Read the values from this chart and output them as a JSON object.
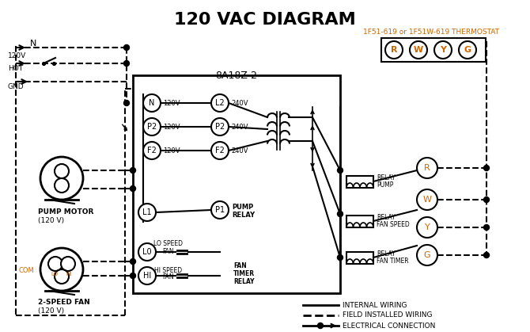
{
  "title": "120 VAC DIAGRAM",
  "title_fontsize": 16,
  "bg_color": "#ffffff",
  "line_color": "#000000",
  "orange_color": "#cc6600",
  "thermostat_label": "1F51-619 or 1F51W-619 THERMOSTAT",
  "board_label": "8A18Z-2",
  "therm_letters": [
    "R",
    "W",
    "Y",
    "G"
  ],
  "left_terminals": [
    [
      "N",
      "120V"
    ],
    [
      "P2",
      "120V"
    ],
    [
      "F2",
      "120V"
    ]
  ],
  "right_terminals": [
    [
      "L2",
      "240V"
    ],
    [
      "P2",
      "240V"
    ],
    [
      "F2",
      "240V"
    ]
  ],
  "pump_motor_label": "PUMP MOTOR",
  "pump_motor_v": "(120 V)",
  "fan_label": "2-SPEED FAN",
  "fan_v": "(120 V)",
  "legend": [
    {
      "text": "INTERNAL WIRING",
      "ls": "-"
    },
    {
      "text": "FIELD INSTALLED WIRING",
      "ls": "--"
    },
    {
      "text": "ELECTRICAL CONNECTION",
      "ls": "-",
      "dot": true
    }
  ]
}
